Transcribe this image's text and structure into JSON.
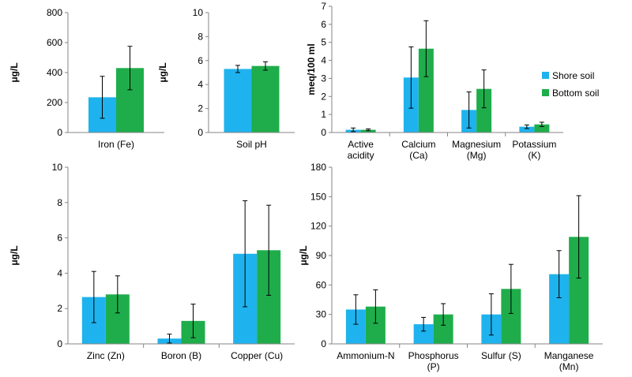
{
  "colors": {
    "shore": "#1EB3EE",
    "bottom": "#1FAD4B"
  },
  "legend": {
    "placement": "right",
    "entries": [
      "Shore soil",
      "Bottom soil"
    ]
  },
  "chart_data": [
    {
      "type": "bar",
      "title": "",
      "xlabel": "",
      "ylabel": "μg/L",
      "ylim": [
        0,
        800
      ],
      "yticks": [
        0,
        200,
        400,
        600,
        800
      ],
      "categories": [
        [
          "Iron (Fe)"
        ]
      ],
      "series": [
        {
          "name": "Shore soil",
          "values": [
            235
          ],
          "errors": [
            140
          ]
        },
        {
          "name": "Bottom soil",
          "values": [
            430
          ],
          "errors": [
            145
          ]
        }
      ]
    },
    {
      "type": "bar",
      "title": "",
      "xlabel": "",
      "ylabel": "μg/L",
      "ylim": [
        0,
        10
      ],
      "yticks": [
        0,
        2,
        4,
        6,
        8,
        10
      ],
      "categories": [
        [
          "Soil pH"
        ]
      ],
      "series": [
        {
          "name": "Shore soil",
          "values": [
            5.3
          ],
          "errors": [
            0.3
          ]
        },
        {
          "name": "Bottom soil",
          "values": [
            5.55
          ],
          "errors": [
            0.35
          ]
        }
      ]
    },
    {
      "type": "bar",
      "title": "",
      "xlabel": "",
      "ylabel": "meq/100 ml",
      "ylim": [
        0,
        7
      ],
      "yticks": [
        0,
        1,
        2,
        3,
        4,
        5,
        6,
        7
      ],
      "categories": [
        [
          "Active",
          "acidity"
        ],
        [
          "Calcium",
          "(Ca)"
        ],
        [
          "Magnesium",
          "(Mg)"
        ],
        [
          "Potassium",
          "(K)"
        ]
      ],
      "series": [
        {
          "name": "Shore soil",
          "values": [
            0.15,
            3.05,
            1.25,
            0.32
          ],
          "errors": [
            0.1,
            1.7,
            1.0,
            0.1
          ]
        },
        {
          "name": "Bottom soil",
          "values": [
            0.15,
            4.65,
            2.42,
            0.45
          ],
          "errors": [
            0.05,
            1.55,
            1.05,
            0.12
          ]
        }
      ]
    },
    {
      "type": "bar",
      "title": "",
      "xlabel": "",
      "ylabel": "μg/L",
      "ylim": [
        0,
        10
      ],
      "yticks": [
        0,
        2,
        4,
        6,
        8,
        10
      ],
      "categories": [
        [
          "Zinc (Zn)"
        ],
        [
          "Boron (B)"
        ],
        [
          "Copper (Cu)"
        ]
      ],
      "series": [
        {
          "name": "Shore soil",
          "values": [
            2.65,
            0.3,
            5.1
          ],
          "errors": [
            1.45,
            0.25,
            3.0
          ]
        },
        {
          "name": "Bottom soil",
          "values": [
            2.8,
            1.3,
            5.3
          ],
          "errors": [
            1.05,
            0.95,
            2.55
          ]
        }
      ]
    },
    {
      "type": "bar",
      "title": "",
      "xlabel": "",
      "ylabel": "μg/L",
      "ylim": [
        0,
        180
      ],
      "yticks": [
        0,
        30,
        60,
        90,
        120,
        150,
        180
      ],
      "categories": [
        [
          "Ammonium-N"
        ],
        [
          "Phosphorus",
          "(P)"
        ],
        [
          "Sulfur (S)"
        ],
        [
          "Manganese",
          "(Mn)"
        ]
      ],
      "series": [
        {
          "name": "Shore soil",
          "values": [
            35,
            20,
            30,
            71
          ],
          "errors": [
            15,
            7,
            21,
            24
          ]
        },
        {
          "name": "Bottom soil",
          "values": [
            38,
            30,
            56,
            109
          ],
          "errors": [
            17,
            11,
            25,
            42
          ]
        }
      ]
    }
  ]
}
